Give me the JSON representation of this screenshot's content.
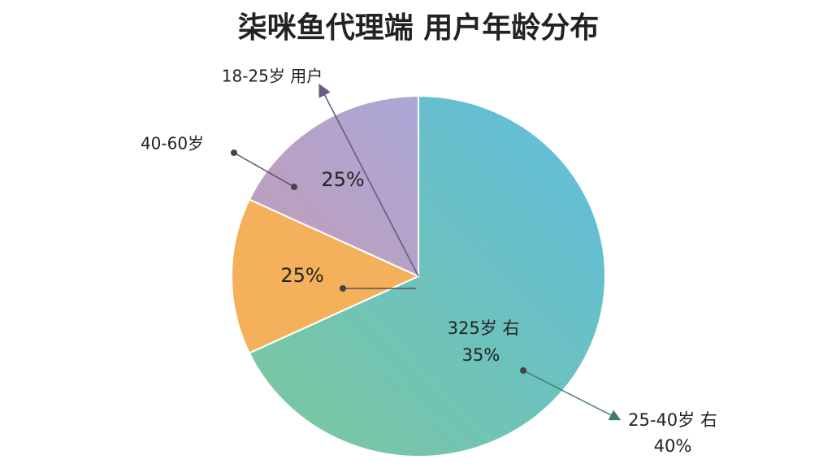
{
  "chart_data": {
    "type": "pie",
    "title": "柒咪鱼代理端 用户年龄分布",
    "values": [
      68,
      14,
      18
    ],
    "colors": [
      "#5fbce0",
      "#f4b05a",
      "#aaa8d6"
    ],
    "gradient_colors": [
      "#7cc89a",
      "#f4b05a",
      "#c29cb8"
    ],
    "annotations": [
      "18-25岁 用户",
      "40-60岁",
      "25%",
      "25%",
      "325岁 右",
      "35%",
      "25-40岁 右",
      "40%"
    ]
  }
}
